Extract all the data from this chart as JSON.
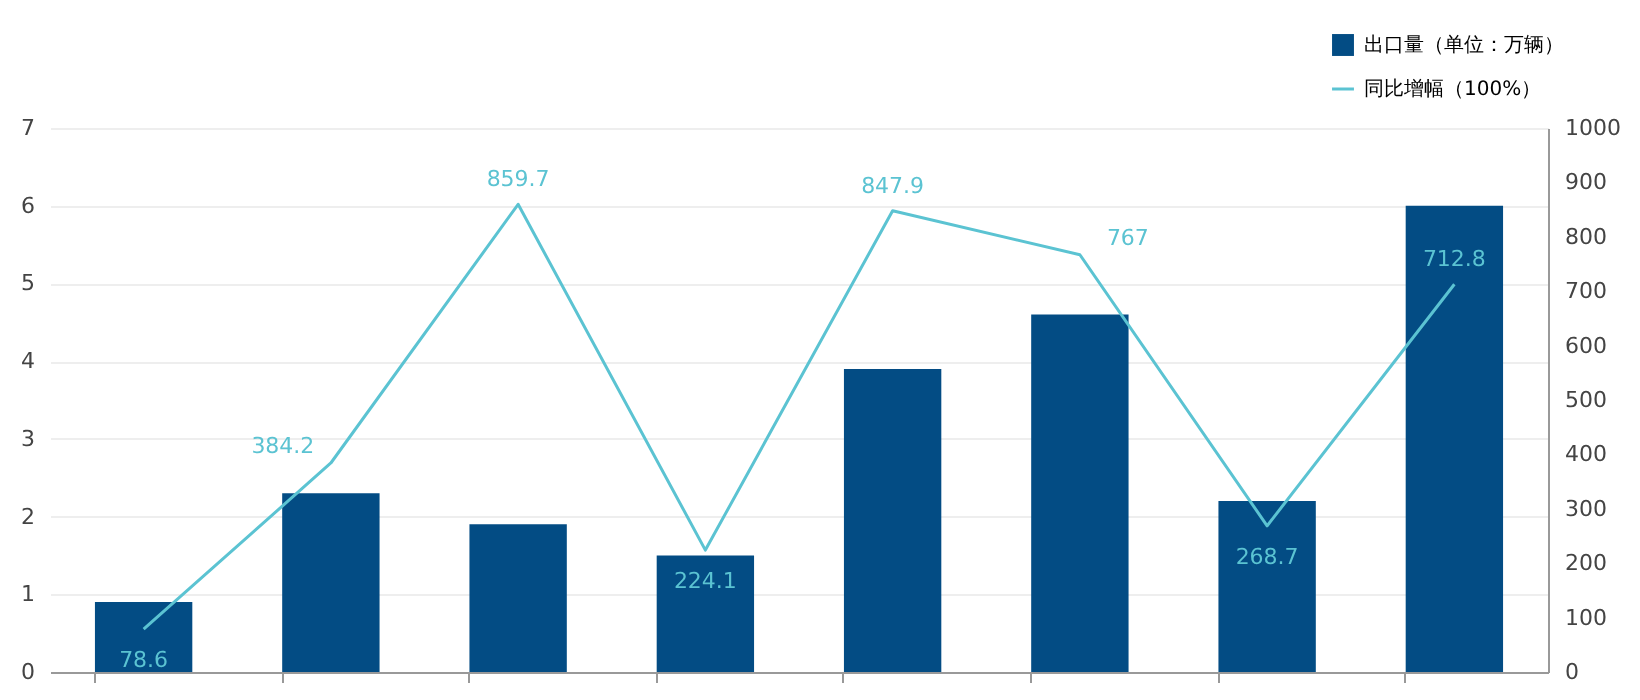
{
  "chart_data": {
    "type": "bar",
    "categories": [
      null,
      null,
      null,
      null,
      null,
      null,
      null,
      null
    ],
    "series": [
      {
        "name": "出口量（单位：万辆）",
        "color": "#034c84",
        "values": [
          0.9,
          2.3,
          1.9,
          1.5,
          3.9,
          4.6,
          2.2,
          6.0
        ]
      },
      {
        "name": "同比增幅（100%）",
        "type": "line",
        "axis": "y2",
        "color": "#5bc3d2",
        "values": [
          78.6,
          384.2,
          859.7,
          224.1,
          847.9,
          767,
          268.7,
          712.8
        ],
        "value_labels": [
          "78.6",
          "384.2",
          "859.7",
          "224.1",
          "847.9",
          "767",
          "268.7",
          "712.8"
        ]
      }
    ],
    "ylim": [
      0,
      7
    ],
    "yticks": [
      0,
      1,
      2,
      3,
      4,
      5,
      6,
      7
    ],
    "y2lim": [
      0,
      1000
    ],
    "y2ticks": [
      0,
      100,
      200,
      300,
      400,
      500,
      600,
      700,
      800,
      900,
      1000
    ],
    "grid": "y",
    "legend": "top right"
  }
}
